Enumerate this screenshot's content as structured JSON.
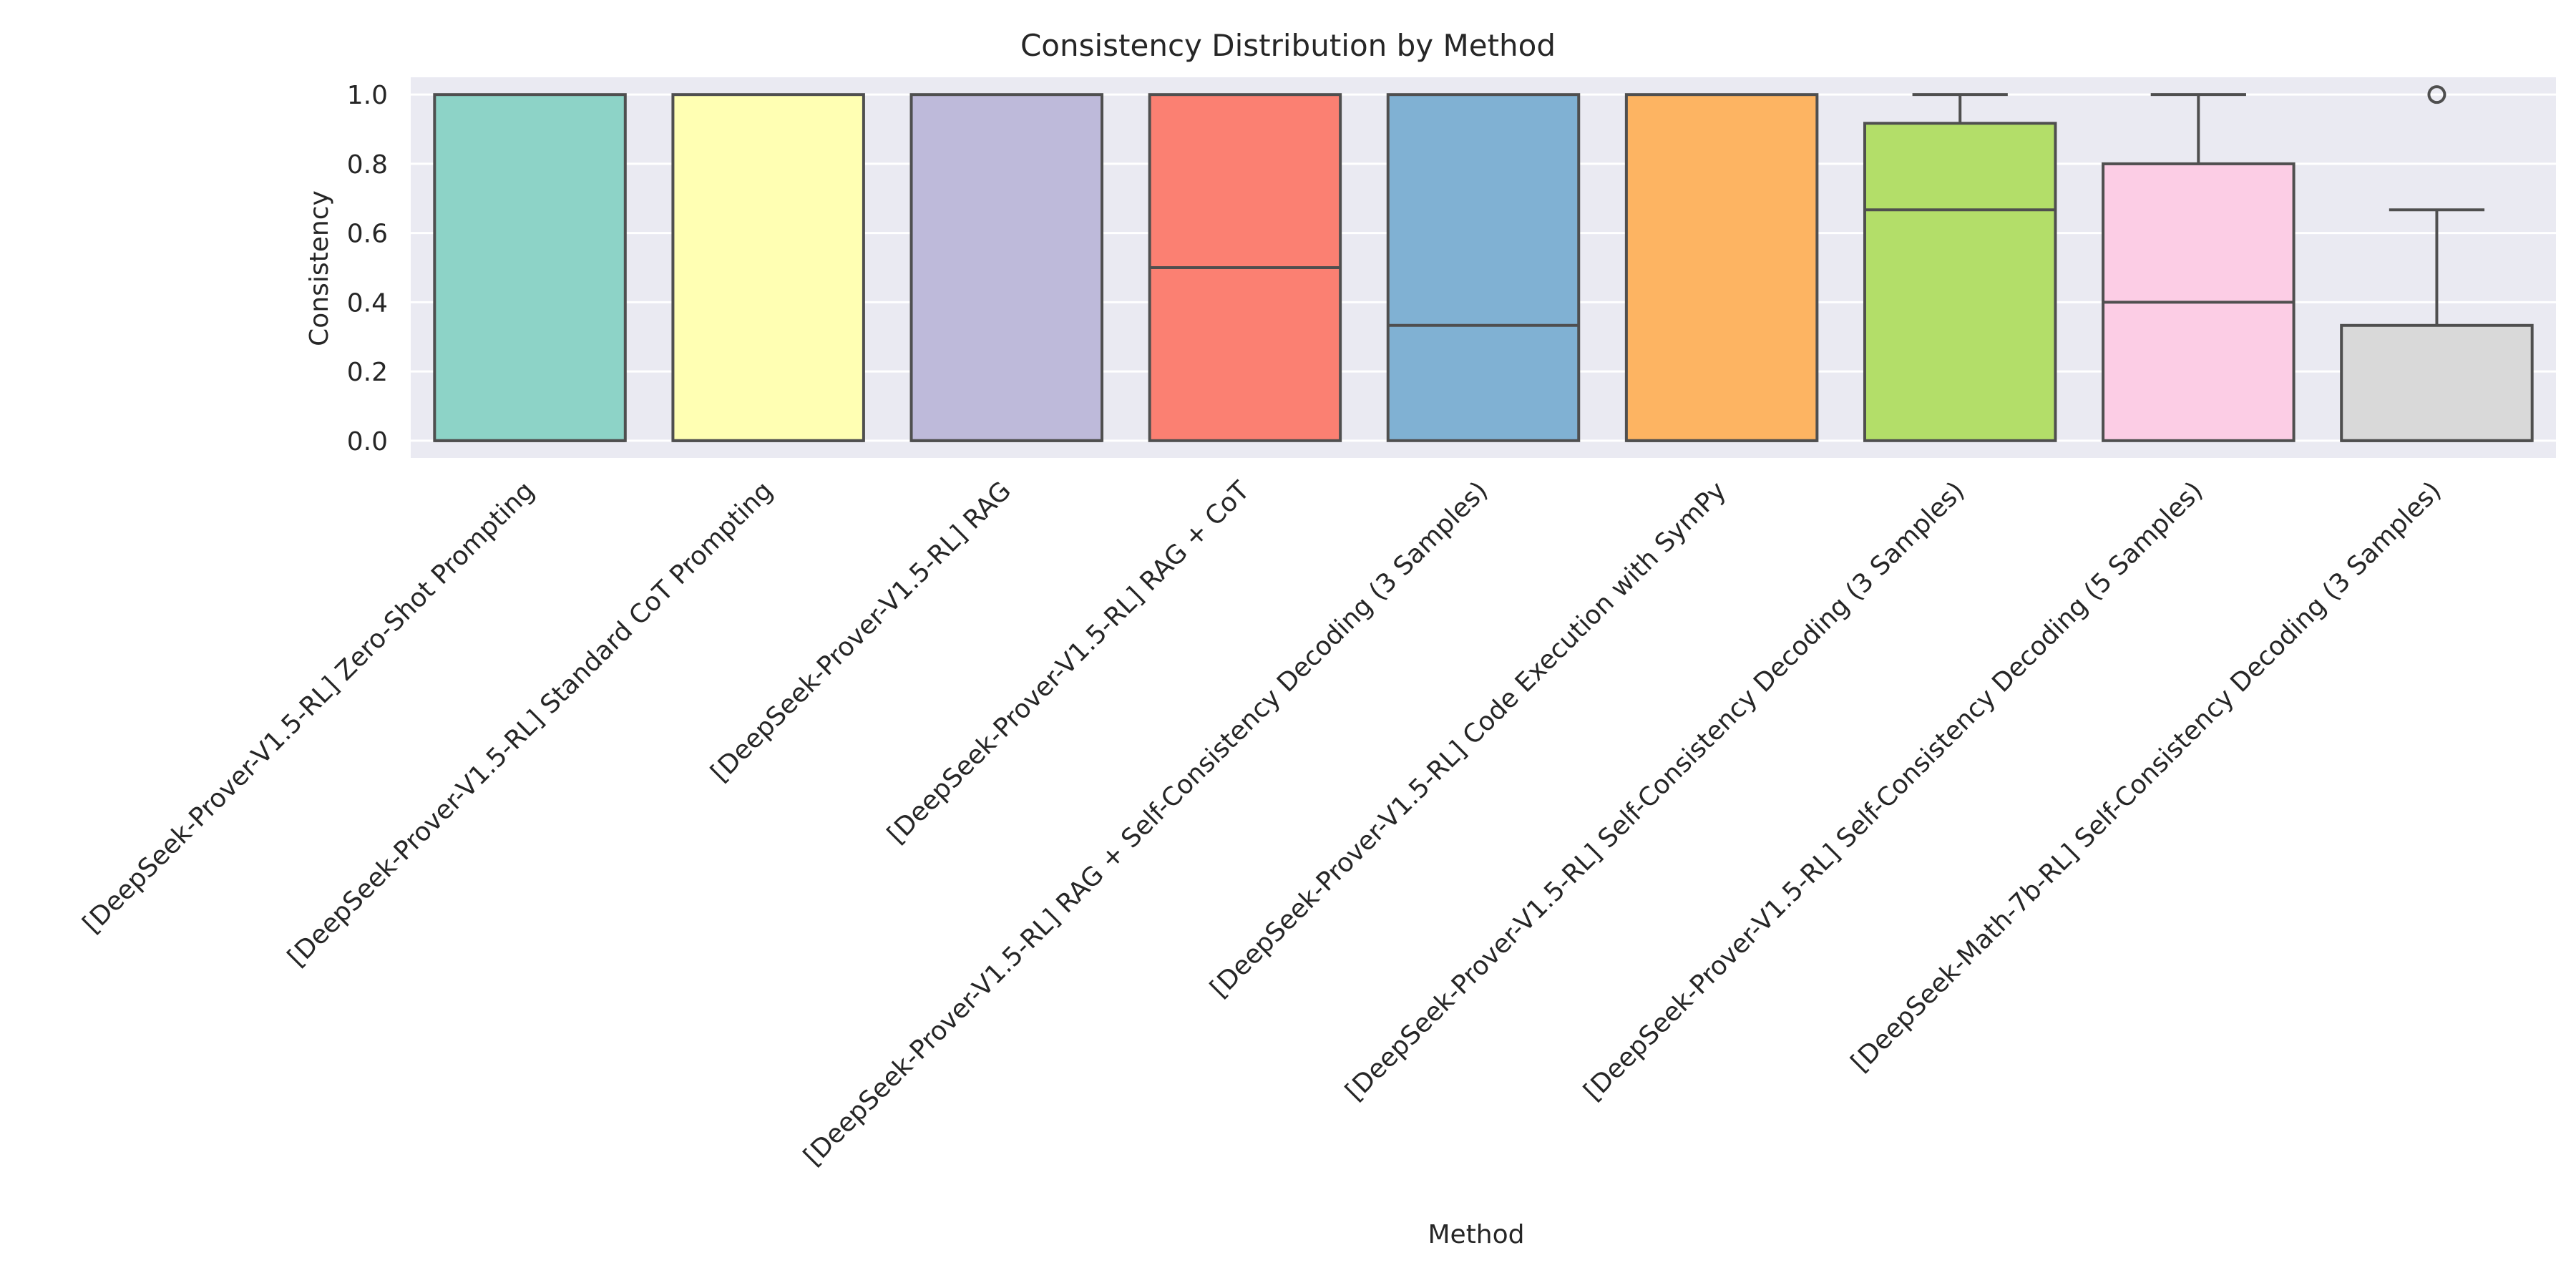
{
  "chart_data": {
    "type": "box",
    "title": "Consistency Distribution by Method",
    "xlabel": "Method",
    "ylabel": "Consistency",
    "ylim": [
      -0.05,
      1.05
    ],
    "yticks": [
      0.0,
      0.2,
      0.4,
      0.6,
      0.8,
      1.0
    ],
    "yticklabels": [
      "0.0",
      "0.2",
      "0.4",
      "0.6",
      "0.8",
      "1.0"
    ],
    "grid": true,
    "background_color": "#EAEAF2",
    "categories": [
      "[DeepSeek-Prover-V1.5-RL] Zero-Shot Prompting",
      "[DeepSeek-Prover-V1.5-RL] Standard CoT Prompting",
      "[DeepSeek-Prover-V1.5-RL] RAG",
      "[DeepSeek-Prover-V1.5-RL] RAG + CoT",
      "[DeepSeek-Prover-V1.5-RL] RAG + Self-Consistency Decoding (3 Samples)",
      "[DeepSeek-Prover-V1.5-RL] Code Execution with SymPy",
      "[DeepSeek-Prover-V1.5-RL] Self-Consistency Decoding (3 Samples)",
      "[DeepSeek-Prover-V1.5-RL] Self-Consistency Decoding (5 Samples)",
      "[DeepSeek-Math-7b-RL] Self-Consistency Decoding (3 Samples)"
    ],
    "boxes": [
      {
        "whislo": 0.0,
        "q1": 0.0,
        "med": 0.0,
        "q3": 1.0,
        "whishi": 1.0,
        "fliers": [],
        "color": "#8DD3C7"
      },
      {
        "whislo": 0.0,
        "q1": 0.0,
        "med": 0.0,
        "q3": 1.0,
        "whishi": 1.0,
        "fliers": [],
        "color": "#FFFFB3"
      },
      {
        "whislo": 0.0,
        "q1": 0.0,
        "med": 0.0,
        "q3": 1.0,
        "whishi": 1.0,
        "fliers": [],
        "color": "#BEBADA"
      },
      {
        "whislo": 0.0,
        "q1": 0.0,
        "med": 0.5,
        "q3": 1.0,
        "whishi": 1.0,
        "fliers": [],
        "color": "#FB8072"
      },
      {
        "whislo": 0.0,
        "q1": 0.0,
        "med": 0.333,
        "q3": 1.0,
        "whishi": 1.0,
        "fliers": [],
        "color": "#80B1D3"
      },
      {
        "whislo": 0.0,
        "q1": 0.0,
        "med": 0.0,
        "q3": 1.0,
        "whishi": 1.0,
        "fliers": [],
        "color": "#FDB462"
      },
      {
        "whislo": 0.0,
        "q1": 0.0,
        "med": 0.667,
        "q3": 0.917,
        "whishi": 1.0,
        "fliers": [],
        "color": "#B3DE69"
      },
      {
        "whislo": 0.0,
        "q1": 0.0,
        "med": 0.4,
        "q3": 0.8,
        "whishi": 1.0,
        "fliers": [],
        "color": "#FCCDE5"
      },
      {
        "whislo": 0.0,
        "q1": 0.0,
        "med": 0.0,
        "q3": 0.333,
        "whishi": 0.667,
        "fliers": [
          1.0
        ],
        "color": "#D9D9D9"
      }
    ]
  }
}
